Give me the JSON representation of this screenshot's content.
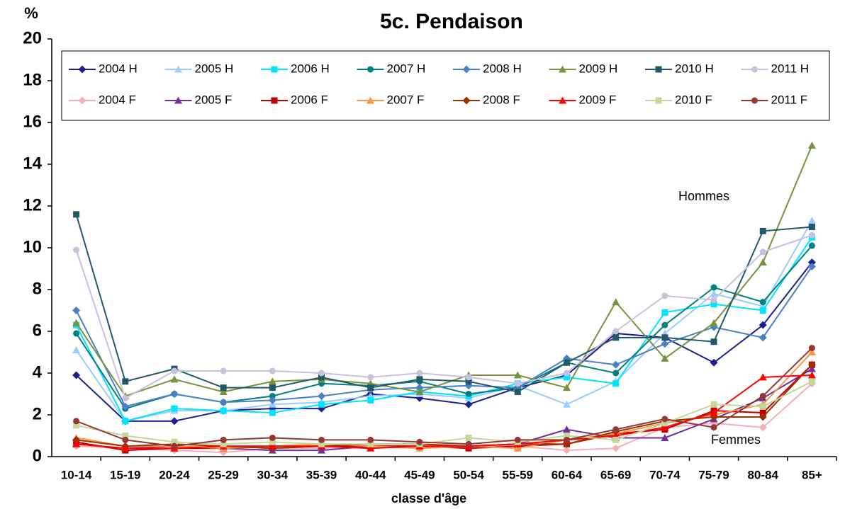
{
  "chart_data": {
    "type": "line",
    "title": "5c. Pendaison",
    "y_label": "%",
    "x_label": "classe d'âge",
    "annotations": [
      "Hommes",
      "Femmes"
    ],
    "categories": [
      "10-14",
      "15-19",
      "20-24",
      "25-29",
      "30-34",
      "35-39",
      "40-44",
      "45-49",
      "50-54",
      "55-59",
      "60-64",
      "65-69",
      "70-74",
      "75-79",
      "80-84",
      "85+"
    ],
    "ylim": [
      0,
      20
    ],
    "yticks": [
      0,
      2,
      4,
      6,
      8,
      10,
      12,
      14,
      16,
      18,
      20
    ],
    "grid": false,
    "legend": "top",
    "series": [
      {
        "name": "2004 H",
        "color": "#1f1f8f",
        "marker": "diamond",
        "values": [
          3.9,
          1.7,
          1.7,
          2.2,
          2.3,
          2.3,
          3.0,
          2.8,
          2.5,
          3.3,
          3.9,
          5.9,
          5.7,
          4.5,
          6.3,
          9.3
        ]
      },
      {
        "name": "2005 H",
        "color": "#99ccff",
        "marker": "triangle",
        "values": [
          5.1,
          1.7,
          2.2,
          2.2,
          2.5,
          2.6,
          2.9,
          3.0,
          2.8,
          3.4,
          2.5,
          3.6,
          5.9,
          7.8,
          7.2,
          11.3
        ]
      },
      {
        "name": "2006 H",
        "color": "#00e5ff",
        "marker": "square",
        "values": [
          6.3,
          1.7,
          2.3,
          2.2,
          2.1,
          2.5,
          2.7,
          3.1,
          2.9,
          3.5,
          3.8,
          3.5,
          6.9,
          7.3,
          7.0,
          10.5
        ]
      },
      {
        "name": "2007 H",
        "color": "#008080",
        "marker": "circle",
        "values": [
          5.9,
          2.3,
          3.0,
          2.6,
          2.9,
          3.5,
          3.4,
          3.6,
          3.0,
          3.3,
          4.5,
          4.0,
          6.3,
          8.1,
          7.4,
          10.1
        ]
      },
      {
        "name": "2008 H",
        "color": "#4a7fc8",
        "marker": "diamond",
        "values": [
          7.0,
          2.4,
          3.0,
          2.6,
          2.7,
          2.9,
          3.2,
          3.3,
          3.4,
          3.3,
          4.7,
          4.4,
          5.4,
          6.2,
          5.7,
          9.1
        ]
      },
      {
        "name": "2009 H",
        "color": "#77933c",
        "marker": "triangle",
        "values": [
          6.4,
          2.9,
          3.7,
          3.1,
          3.6,
          3.7,
          3.5,
          3.1,
          3.9,
          3.9,
          3.3,
          7.4,
          4.7,
          6.4,
          9.3,
          14.9
        ]
      },
      {
        "name": "2010 H",
        "color": "#215968",
        "marker": "square",
        "values": [
          11.6,
          3.6,
          4.2,
          3.3,
          3.3,
          3.8,
          3.3,
          3.7,
          3.6,
          3.1,
          4.5,
          5.7,
          5.7,
          5.5,
          10.8,
          11.0
        ]
      },
      {
        "name": "2011 H",
        "color": "#c8c0dc",
        "marker": "circle",
        "values": [
          9.9,
          2.8,
          4.1,
          4.1,
          4.1,
          4.0,
          3.8,
          4.0,
          3.8,
          3.5,
          4.0,
          6.0,
          7.7,
          7.5,
          9.8,
          10.6
        ]
      },
      {
        "name": "2004 F",
        "color": "#f4b0b8",
        "marker": "diamond",
        "values": [
          0.5,
          0.4,
          0.3,
          0.2,
          0.4,
          0.4,
          0.5,
          0.4,
          0.5,
          0.5,
          0.3,
          0.4,
          1.4,
          1.6,
          1.4,
          3.5
        ]
      },
      {
        "name": "2005 F",
        "color": "#7030a0",
        "marker": "triangle",
        "values": [
          0.6,
          0.4,
          0.5,
          0.4,
          0.3,
          0.3,
          0.5,
          0.5,
          0.5,
          0.6,
          1.3,
          0.9,
          0.9,
          1.8,
          2.8,
          4.2
        ]
      },
      {
        "name": "2006 F",
        "color": "#c00000",
        "marker": "square",
        "values": [
          0.7,
          0.3,
          0.4,
          0.4,
          0.5,
          0.5,
          0.5,
          0.5,
          0.4,
          0.5,
          0.6,
          1.1,
          1.3,
          2.2,
          2.1,
          4.4
        ]
      },
      {
        "name": "2007 F",
        "color": "#f79646",
        "marker": "triangle",
        "values": [
          0.9,
          0.5,
          0.5,
          0.4,
          0.5,
          0.6,
          0.5,
          0.4,
          0.5,
          0.4,
          0.8,
          1.1,
          1.6,
          2.0,
          2.5,
          5.0
        ]
      },
      {
        "name": "2008 F",
        "color": "#993300",
        "marker": "diamond",
        "values": [
          0.8,
          0.5,
          0.6,
          0.5,
          0.4,
          0.5,
          0.6,
          0.6,
          0.5,
          0.6,
          0.6,
          1.2,
          1.7,
          1.9,
          1.9,
          4.4
        ]
      },
      {
        "name": "2009 F",
        "color": "#ff0000",
        "marker": "triangle",
        "values": [
          0.6,
          0.4,
          0.4,
          0.5,
          0.5,
          0.5,
          0.4,
          0.5,
          0.5,
          0.6,
          0.8,
          1.0,
          1.4,
          2.1,
          3.8,
          3.9
        ]
      },
      {
        "name": "2010 F",
        "color": "#c4d79b",
        "marker": "square",
        "values": [
          1.5,
          1.0,
          0.7,
          0.6,
          0.7,
          0.6,
          0.6,
          0.6,
          0.9,
          0.7,
          1.0,
          0.8,
          1.6,
          2.5,
          2.4,
          3.6
        ]
      },
      {
        "name": "2011 F",
        "color": "#953735",
        "marker": "circle",
        "values": [
          1.7,
          0.8,
          0.5,
          0.8,
          0.9,
          0.8,
          0.8,
          0.7,
          0.6,
          0.8,
          0.8,
          1.3,
          1.8,
          1.4,
          2.9,
          5.2
        ]
      }
    ]
  }
}
